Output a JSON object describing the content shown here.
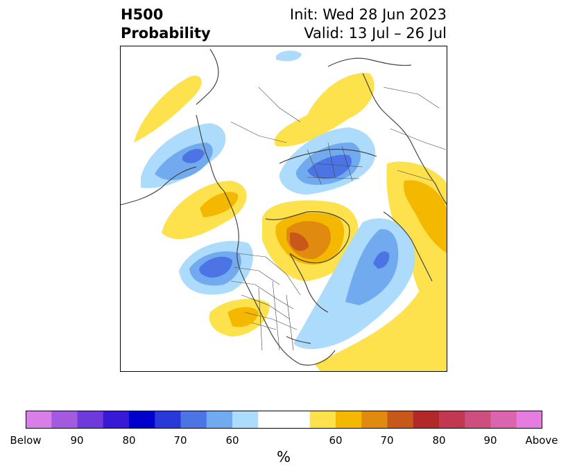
{
  "title": {
    "left_line1": "H500",
    "left_line2": "Probability",
    "right_line1": "Init: Wed 28 Jun 2023",
    "right_line2": "Valid: 13 Jul – 26 Jul"
  },
  "colorbar": {
    "colors": [
      "#d77ee8",
      "#a15ae0",
      "#6e3adb",
      "#3819d6",
      "#0000cc",
      "#2739d9",
      "#4c74e4",
      "#72aaf0",
      "#acdbfb",
      "#ffffff",
      "#ffffff",
      "#fde24d",
      "#f5b800",
      "#e08a10",
      "#c8571a",
      "#b32828",
      "#c23850",
      "#cd4f80",
      "#db64ae",
      "#e67be0"
    ],
    "tick_labels": [
      "Below",
      "90",
      "80",
      "70",
      "60",
      "60",
      "70",
      "80",
      "90",
      "Above"
    ],
    "unit_label": "%"
  },
  "map": {
    "below_colors": [
      "#acdbfb",
      "#72aaf0",
      "#4c74e4"
    ],
    "above_colors": [
      "#fde24d",
      "#f5b800",
      "#e08a10",
      "#c8571a"
    ],
    "coastline_color": "#444444"
  }
}
